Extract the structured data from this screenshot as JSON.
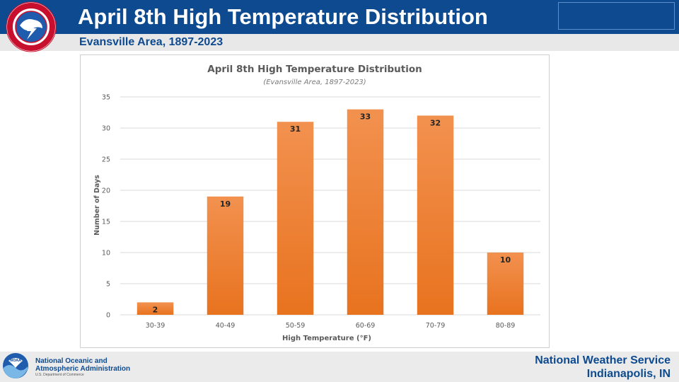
{
  "header": {
    "title": "April 8th High Temperature Distribution",
    "subtitle": "Evansville Area, 1897-2023"
  },
  "footer": {
    "noaa_line1": "National Oceanic and",
    "noaa_line2": "Atmospheric Administration",
    "noaa_dept": "U.S. Department of Commerce",
    "office_line1": "National Weather Service",
    "office_line2": "Indianapolis, IN"
  },
  "colors": {
    "header_bg": "#0d4a8f",
    "subtitle_bar": "#e8e8e8",
    "bar_top": "#f2914f",
    "bar_bottom": "#e8731f"
  },
  "chart_data": {
    "type": "bar",
    "title": "April 8th High Temperature Distribution",
    "subtitle": "(Evansville Area, 1897-2023)",
    "xlabel": "High Temperature (°F)",
    "ylabel": "Number of Days",
    "categories": [
      "30-39",
      "40-49",
      "50-59",
      "60-69",
      "70-79",
      "80-89"
    ],
    "values": [
      2,
      19,
      31,
      33,
      32,
      10
    ],
    "ylim": [
      0,
      35
    ],
    "yticks": [
      0,
      5,
      10,
      15,
      20,
      25,
      30,
      35
    ],
    "grid": true,
    "data_labels": true,
    "legend": "none"
  }
}
